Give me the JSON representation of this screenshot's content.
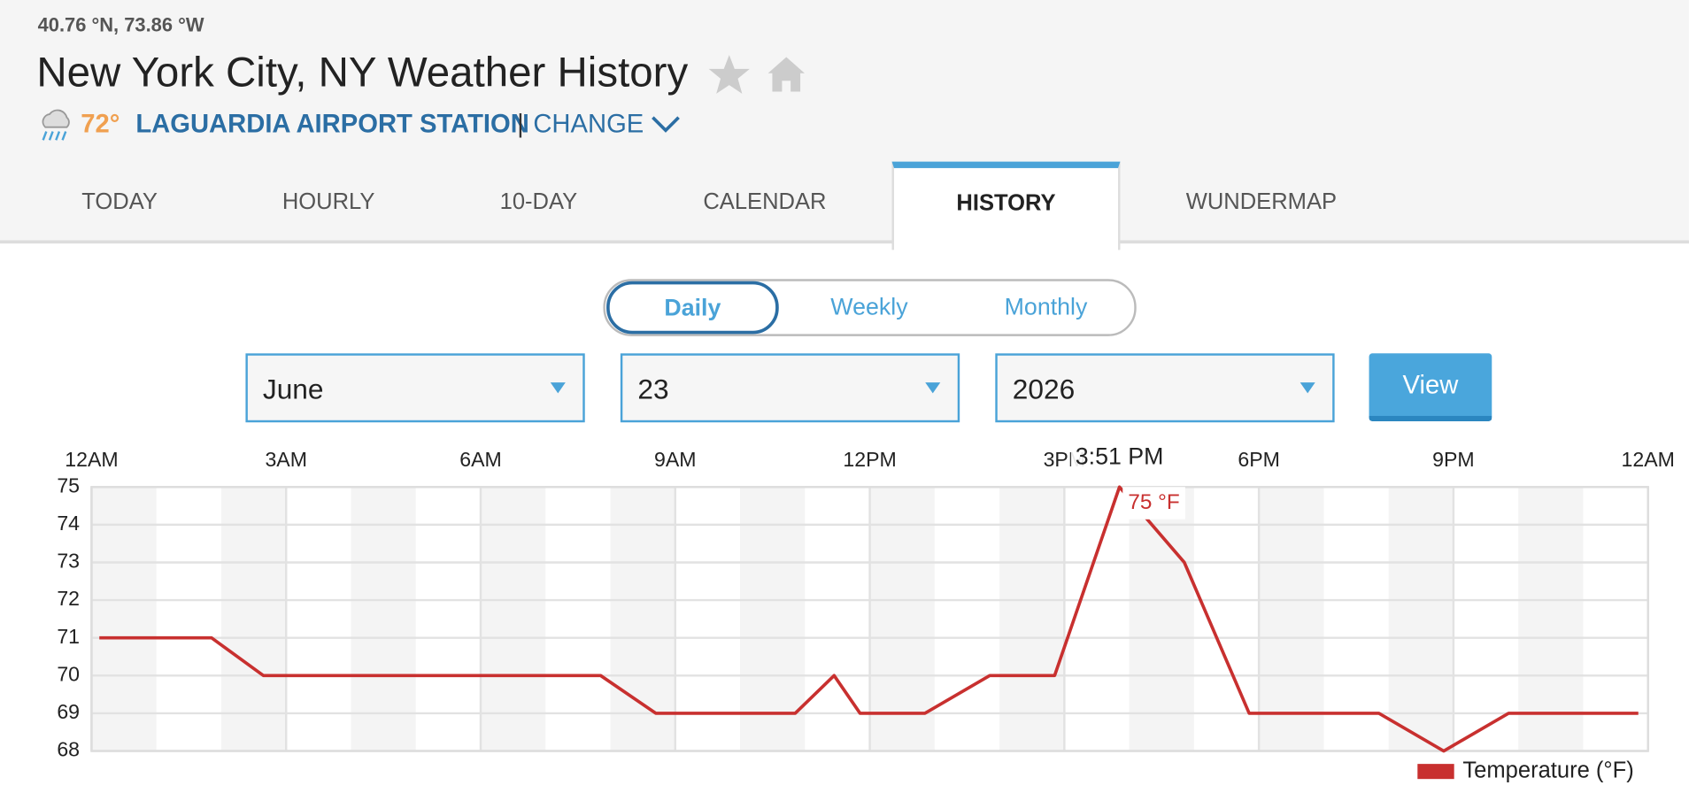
{
  "header": {
    "coordinates": "40.76 °N, 73.86 °W",
    "title": "New York City, NY Weather History",
    "current_temp": "72°",
    "station": "LAGUARDIA AIRPORT STATION",
    "separator": "|",
    "change": "CHANGE"
  },
  "tabs": [
    "TODAY",
    "HOURLY",
    "10-DAY",
    "CALENDAR",
    "HISTORY",
    "WUNDERMAP"
  ],
  "period_toggle": [
    "Daily",
    "Weekly",
    "Monthly"
  ],
  "date_selects": {
    "month": "June",
    "day": "23",
    "year": "2026"
  },
  "view_button": "View",
  "chart_data": {
    "type": "line",
    "x": [
      0.12,
      1.85,
      2.65,
      7.85,
      8.7,
      10.85,
      11.45,
      11.85,
      12.85,
      13.85,
      14.85,
      15.85,
      16.85,
      17.85,
      19.85,
      20.85,
      21.85,
      23.85
    ],
    "series": [
      {
        "name": "Temperature (°F)",
        "color": "#c8302f",
        "values": [
          71,
          71,
          70,
          70,
          69,
          69,
          70,
          69,
          69,
          70,
          70,
          75,
          73,
          69,
          69,
          68,
          69,
          69
        ]
      }
    ],
    "xlim": [
      0,
      24
    ],
    "xticks": [
      {
        "value": 0,
        "label": "12AM"
      },
      {
        "value": 3,
        "label": "3AM"
      },
      {
        "value": 6,
        "label": "6AM"
      },
      {
        "value": 9,
        "label": "9AM"
      },
      {
        "value": 12,
        "label": "12PM"
      },
      {
        "value": 15,
        "label": "3PM"
      },
      {
        "value": 18,
        "label": "6PM"
      },
      {
        "value": 21,
        "label": "9PM"
      },
      {
        "value": 24,
        "label": "12AM"
      }
    ],
    "ylim": [
      68,
      75
    ],
    "yticks": [
      68,
      69,
      70,
      71,
      72,
      73,
      74,
      75
    ],
    "grid": true,
    "legend": "bottom-right",
    "tooltip": {
      "title": "3:51 PM",
      "label": "75 °F"
    }
  }
}
